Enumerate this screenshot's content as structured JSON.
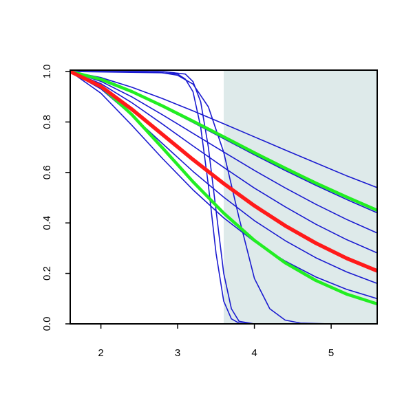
{
  "chart_data": {
    "type": "line",
    "x": [
      1.6,
      2.0,
      2.4,
      2.8,
      3.2,
      3.6,
      4.0,
      4.4,
      4.8,
      5.2,
      5.6
    ],
    "xlim": [
      1.6,
      5.6
    ],
    "ylim": [
      0,
      1
    ],
    "xticks": [
      2,
      3,
      4,
      5
    ],
    "yticks": [
      {
        "value": 0,
        "label": "0.0"
      },
      0.2,
      0.4,
      0.6,
      0.8,
      {
        "value": 1,
        "label": "1.0"
      }
    ],
    "shade": {
      "xlim": [
        3.6,
        5.6
      ],
      "color": "#deeaea"
    },
    "series": [
      {
        "color": "#1a1ad0",
        "line_width": 1.6,
        "values": [
          1,
          0.976,
          0.938,
          0.893,
          0.844,
          0.793,
          0.741,
          0.689,
          0.638,
          0.587,
          0.54
        ]
      },
      {
        "color": "#1a1ad0",
        "line_width": 1.6,
        "values": [
          1,
          0.969,
          0.919,
          0.86,
          0.798,
          0.734,
          0.67,
          0.608,
          0.549,
          0.493,
          0.44
        ]
      },
      {
        "color": "#1a1ad0",
        "line_width": 1.6,
        "values": [
          1,
          0.961,
          0.9,
          0.829,
          0.755,
          0.681,
          0.608,
          0.539,
          0.474,
          0.414,
          0.36
        ]
      },
      {
        "color": "#1a1ad0",
        "line_width": 1.6,
        "values": [
          1,
          0.952,
          0.877,
          0.792,
          0.705,
          0.62,
          0.538,
          0.464,
          0.395,
          0.334,
          0.281
        ]
      },
      {
        "color": "#1a1ad0",
        "line_width": 1.6,
        "values": [
          1,
          0.931,
          0.827,
          0.715,
          0.604,
          0.502,
          0.409,
          0.33,
          0.262,
          0.206,
          0.16
        ]
      },
      {
        "color": "#1a1ad0",
        "line_width": 1.6,
        "values": [
          1,
          0.914,
          0.788,
          0.656,
          0.531,
          0.42,
          0.326,
          0.249,
          0.186,
          0.137,
          0.1
        ]
      },
      {
        "color": "#1a1ad0",
        "line_width": 1.6,
        "x": [
          1.6,
          2.6,
          3.0,
          3.1,
          3.2,
          3.3,
          3.4,
          3.5,
          3.6,
          3.7,
          3.8,
          4.0,
          5.6
        ],
        "values": [
          1,
          1,
          0.99,
          0.97,
          0.92,
          0.78,
          0.55,
          0.28,
          0.09,
          0.02,
          0.003,
          0,
          0
        ]
      },
      {
        "color": "#1a1ad0",
        "line_width": 1.6,
        "x": [
          1.6,
          2.8,
          3.1,
          3.2,
          3.3,
          3.4,
          3.5,
          3.6,
          3.7,
          3.8,
          4.0,
          5.6
        ],
        "values": [
          1,
          1,
          0.99,
          0.96,
          0.88,
          0.7,
          0.45,
          0.2,
          0.06,
          0.01,
          0,
          0
        ]
      },
      {
        "color": "#1a1ad0",
        "line_width": 1.6,
        "x": [
          1.6,
          2.8,
          3.0,
          3.2,
          3.4,
          3.6,
          3.8,
          4.0,
          4.2,
          4.4,
          4.6,
          5.0,
          5.6
        ],
        "values": [
          1,
          0.995,
          0.985,
          0.95,
          0.86,
          0.68,
          0.42,
          0.18,
          0.06,
          0.015,
          0.003,
          0,
          0
        ]
      },
      {
        "color": "#22ee22",
        "line_width": 4.5,
        "values": [
          1,
          0.969,
          0.921,
          0.864,
          0.803,
          0.741,
          0.678,
          0.617,
          0.558,
          0.503,
          0.45
        ]
      },
      {
        "color": "#22ee22",
        "line_width": 4.5,
        "values": [
          1,
          0.941,
          0.83,
          0.698,
          0.563,
          0.439,
          0.331,
          0.242,
          0.172,
          0.118,
          0.079
        ]
      },
      {
        "color": "#ff1a1a",
        "line_width": 5.5,
        "values": [
          1,
          0.941,
          0.851,
          0.751,
          0.651,
          0.556,
          0.468,
          0.389,
          0.32,
          0.26,
          0.21
        ]
      }
    ]
  }
}
